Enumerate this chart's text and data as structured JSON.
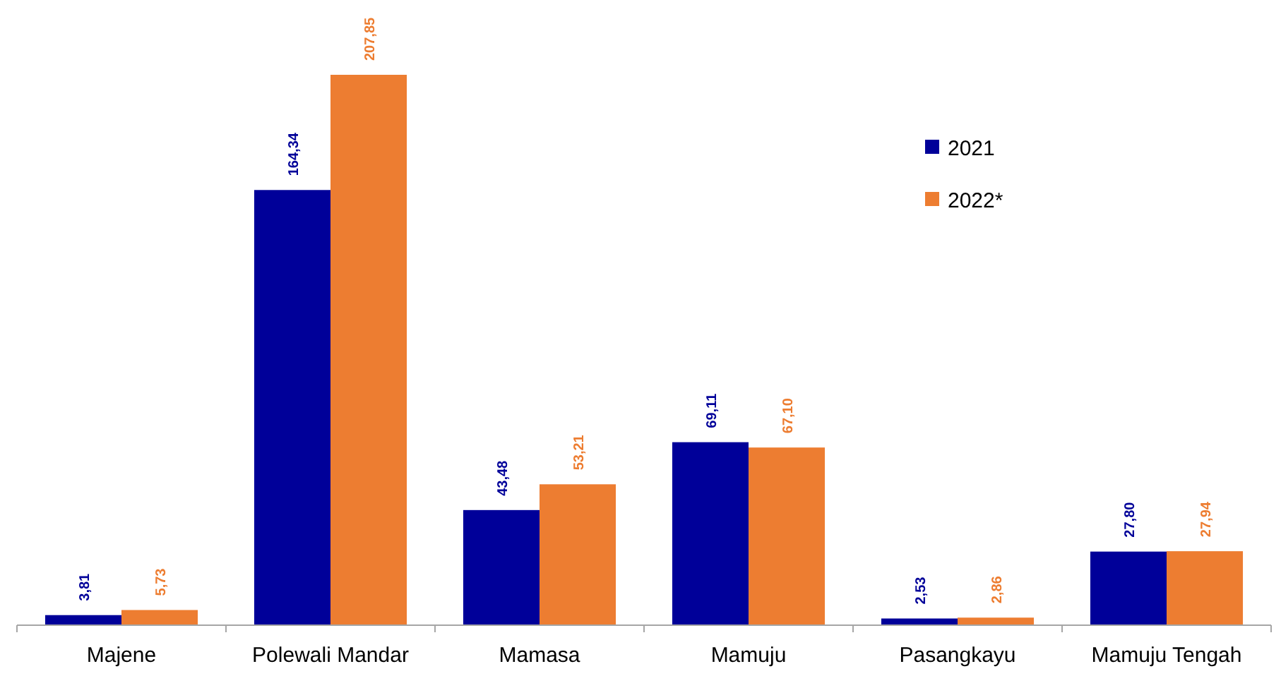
{
  "chart_data": {
    "type": "bar",
    "categories": [
      "Majene",
      "Polewali Mandar",
      "Mamasa",
      "Mamuju",
      "Pasangkayu",
      "Mamuju Tengah"
    ],
    "series": [
      {
        "name": "2021",
        "color": "#000099",
        "values": [
          3.81,
          164.34,
          43.48,
          69.11,
          2.53,
          27.8
        ],
        "value_labels": [
          "3,81",
          "164,34",
          "43,48",
          "69,11",
          "2,53",
          "27,80"
        ]
      },
      {
        "name": "2022*",
        "color": "#ed7d31",
        "values": [
          5.73,
          207.85,
          53.21,
          67.1,
          2.86,
          27.94
        ],
        "value_labels": [
          "5,73",
          "207,85",
          "53,21",
          "67,10",
          "2,86",
          "27,94"
        ]
      }
    ],
    "legend": "top right"
  }
}
